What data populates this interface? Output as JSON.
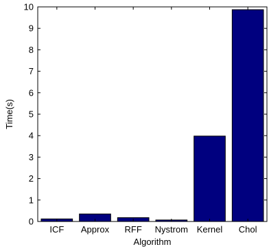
{
  "chart_data": {
    "type": "bar",
    "categories": [
      "ICF",
      "Approx",
      "RFF",
      "Nystrom",
      "Kernel",
      "Chol"
    ],
    "values": [
      0.12,
      0.35,
      0.18,
      0.07,
      3.98,
      9.87
    ],
    "title": "",
    "xlabel": "Algorithm",
    "ylabel": "Time(s)",
    "ylim": [
      0,
      10
    ],
    "yticks": [
      0,
      1,
      2,
      3,
      4,
      5,
      6,
      7,
      8,
      9,
      10
    ],
    "grid": false,
    "bar_color": "#00007f"
  }
}
